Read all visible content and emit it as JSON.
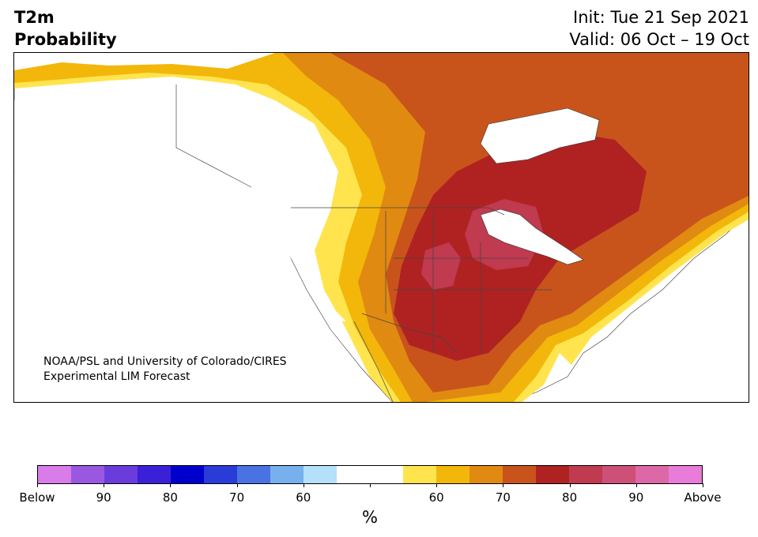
{
  "header": {
    "title_line1": "T2m",
    "title_line2": "Probability",
    "init": "Init: Tue 21 Sep 2021",
    "valid": "Valid: 06 Oct – 19 Oct"
  },
  "credit": {
    "line1": "NOAA/PSL and University of Colorado/CIRES",
    "line2": "Experimental LIM Forecast"
  },
  "colorbar": {
    "colors": [
      "#d97be8",
      "#9a58e0",
      "#6a3cdc",
      "#3a20d6",
      "#0000cc",
      "#2a3cd8",
      "#4a72e2",
      "#78b0ee",
      "#b4e0fa",
      "#ffffff",
      "#ffffff",
      "#ffe44e",
      "#f2b70a",
      "#e08a12",
      "#c8541c",
      "#b02222",
      "#c03a50",
      "#cc5078",
      "#dc68a8",
      "#e87cd8"
    ],
    "tick_labels": [
      "Below",
      "90",
      "80",
      "70",
      "60",
      "",
      "60",
      "70",
      "80",
      "90",
      "Above"
    ],
    "unit": "%"
  }
}
